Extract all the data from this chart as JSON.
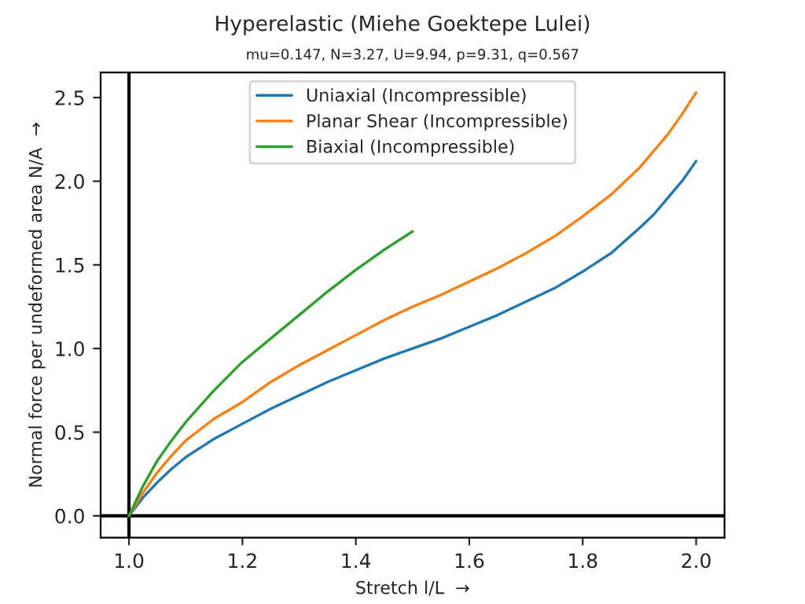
{
  "chart_data": {
    "type": "line",
    "title": "Hyperelastic (Miehe Goektepe Lulei)",
    "subtitle": "mu=0.147, N=3.27, U=9.94, p=9.31, q=0.567",
    "xlabel": "Stretch l/L  →",
    "ylabel": "Normal force per undeformed area N/A  →",
    "series": [
      {
        "name": "Uniaxial (Incompressible)",
        "color": "#1f77b4",
        "x": [
          1.0,
          1.025,
          1.05,
          1.075,
          1.1,
          1.15,
          1.2,
          1.25,
          1.3,
          1.35,
          1.4,
          1.45,
          1.5,
          1.55,
          1.6,
          1.65,
          1.7,
          1.75,
          1.8,
          1.85,
          1.9,
          1.925,
          1.95,
          1.975,
          2.0
        ],
        "values": [
          0,
          0.11,
          0.2,
          0.28,
          0.35,
          0.46,
          0.55,
          0.64,
          0.72,
          0.8,
          0.87,
          0.94,
          1.0,
          1.06,
          1.13,
          1.2,
          1.28,
          1.36,
          1.46,
          1.57,
          1.72,
          1.8,
          1.9,
          2.0,
          2.12
        ]
      },
      {
        "name": "Planar Shear (Incompressible)",
        "color": "#ff7f0e",
        "x": [
          1.0,
          1.025,
          1.05,
          1.075,
          1.1,
          1.15,
          1.2,
          1.25,
          1.3,
          1.35,
          1.4,
          1.45,
          1.5,
          1.55,
          1.6,
          1.65,
          1.7,
          1.75,
          1.8,
          1.85,
          1.9,
          1.925,
          1.95,
          1.975,
          2.0
        ],
        "values": [
          0,
          0.14,
          0.26,
          0.36,
          0.45,
          0.58,
          0.68,
          0.8,
          0.9,
          0.99,
          1.08,
          1.17,
          1.25,
          1.32,
          1.4,
          1.48,
          1.57,
          1.67,
          1.79,
          1.92,
          2.08,
          2.18,
          2.28,
          2.4,
          2.53
        ]
      },
      {
        "name": "Biaxial (Incompressible)",
        "color": "#2ca02c",
        "x": [
          1.0,
          1.025,
          1.05,
          1.075,
          1.1,
          1.15,
          1.2,
          1.25,
          1.3,
          1.35,
          1.4,
          1.45,
          1.5
        ],
        "values": [
          0,
          0.18,
          0.33,
          0.45,
          0.56,
          0.75,
          0.92,
          1.06,
          1.2,
          1.34,
          1.47,
          1.59,
          1.7
        ]
      }
    ],
    "xlim": [
      0.95,
      2.05
    ],
    "ylim": [
      -0.13,
      2.65
    ],
    "xticks": [
      {
        "value": 1.0,
        "label": "1.0"
      },
      1.2,
      1.4,
      1.6,
      1.8,
      {
        "value": 2.0,
        "label": "2.0"
      }
    ],
    "yticks": [
      {
        "value": 0.0,
        "label": "0.0"
      },
      0.5,
      {
        "value": 1.0,
        "label": "1.0"
      },
      1.5,
      {
        "value": 2.0,
        "label": "2.0"
      },
      2.5
    ],
    "ref_lines": [
      {
        "axis": "x",
        "value": 1.0,
        "color": "#000000"
      },
      {
        "axis": "y",
        "value": 0,
        "color": "#000000"
      }
    ],
    "legend": "upper center",
    "grid": false,
    "line_style": "solid",
    "marker": "none"
  }
}
